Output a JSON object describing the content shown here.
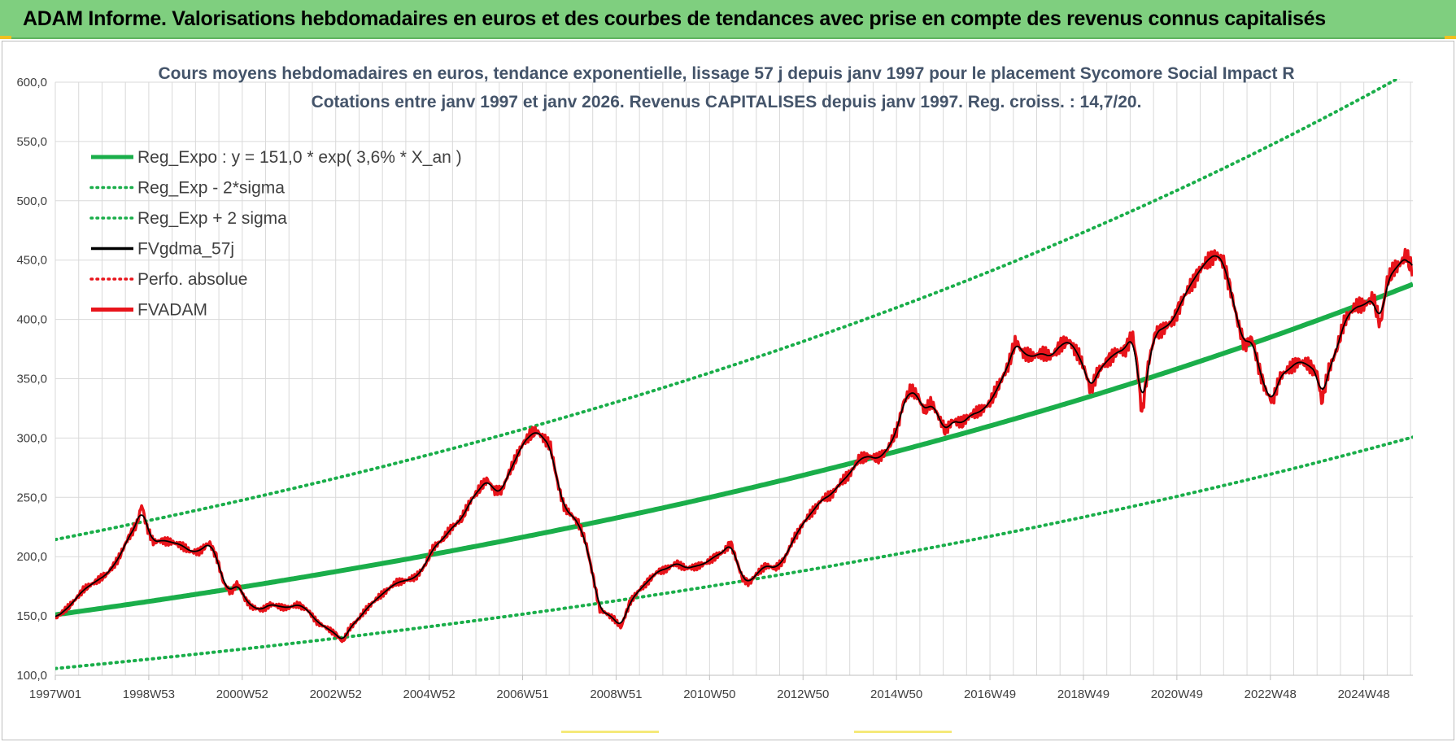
{
  "banner": {
    "title": "ADAM Informe. Valorisations hebdomadaires en euros et des courbes de tendances avec prise en compte des revenus connus capitalisés"
  },
  "colors": {
    "banner_bg": "#7fcf7f",
    "regression": "#1aae4a",
    "sigma_bands": "#1aae4a",
    "gdma": "#000000",
    "fvadam": "#e8141b",
    "perfo": "#e8141b",
    "grid": "#d9d9d9",
    "title_text": "#44546a"
  },
  "chart_data": {
    "type": "line",
    "title_line1": "Cours moyens hebdomadaires en euros, tendance exponentielle, lissage 57 j depuis janv 1997 pour le placement Sycomore Social Impact R",
    "title_line2": "Cotations entre janv 1997 et janv 2026. Revenus CAPITALISES depuis janv 1997. Reg. croiss. : 14,7/20.",
    "x_range_years": [
      1997.0,
      2026.05
    ],
    "ylim": [
      100,
      600
    ],
    "y_ticks": [
      100,
      150,
      200,
      250,
      300,
      350,
      400,
      450,
      500,
      550,
      600
    ],
    "y_tick_labels": [
      "100,0",
      "150,0",
      "200,0",
      "250,0",
      "300,0",
      "350,0",
      "400,0",
      "450,0",
      "500,0",
      "550,0",
      "600,0"
    ],
    "x_ticks": [
      {
        "label": "1997W01",
        "year": 1997.0
      },
      {
        "label": "1998W53",
        "year": 1999.0
      },
      {
        "label": "2000W52",
        "year": 2001.0
      },
      {
        "label": "2002W52",
        "year": 2003.0
      },
      {
        "label": "2004W52",
        "year": 2005.0
      },
      {
        "label": "2006W51",
        "year": 2007.0
      },
      {
        "label": "2008W51",
        "year": 2009.0
      },
      {
        "label": "2010W50",
        "year": 2011.0
      },
      {
        "label": "2012W50",
        "year": 2013.0
      },
      {
        "label": "2014W50",
        "year": 2015.0
      },
      {
        "label": "2016W49",
        "year": 2017.0
      },
      {
        "label": "2018W49",
        "year": 2019.0
      },
      {
        "label": "2020W49",
        "year": 2021.0
      },
      {
        "label": "2022W48",
        "year": 2023.0
      },
      {
        "label": "2024W48",
        "year": 2025.0
      }
    ],
    "regression": {
      "a": 151.0,
      "rate": 0.036,
      "start_year": 1997.0
    },
    "sigma_factor_low": 0.7,
    "sigma_factor_high": 1.42,
    "legend": [
      {
        "key": "reg",
        "label": "Reg_Expo : y = 151,0 * exp( 3,6% *  X_an )",
        "style": "solid-thick",
        "color": "#1aae4a"
      },
      {
        "key": "minus",
        "label": "Reg_Exp - 2*sigma",
        "style": "dotted",
        "color": "#1aae4a"
      },
      {
        "key": "plus",
        "label": "Reg_Exp + 2 sigma",
        "style": "dotted",
        "color": "#1aae4a"
      },
      {
        "key": "gdma",
        "label": "FVgdma_57j",
        "style": "solid",
        "color": "#000000"
      },
      {
        "key": "perfo",
        "label": "Perfo. absolue",
        "style": "dotted",
        "color": "#e8141b"
      },
      {
        "key": "fvadam",
        "label": "FVADAM",
        "style": "solid-thick",
        "color": "#e8141b"
      }
    ],
    "series": [
      {
        "name": "FVADAM",
        "points": [
          [
            1997.0,
            148
          ],
          [
            1997.3,
            158
          ],
          [
            1997.6,
            172
          ],
          [
            1997.9,
            180
          ],
          [
            1998.1,
            185
          ],
          [
            1998.35,
            198
          ],
          [
            1998.55,
            215
          ],
          [
            1998.75,
            228
          ],
          [
            1998.85,
            244
          ],
          [
            1998.95,
            226
          ],
          [
            1999.1,
            212
          ],
          [
            1999.3,
            214
          ],
          [
            1999.5,
            212
          ],
          [
            1999.7,
            210
          ],
          [
            1999.9,
            204
          ],
          [
            2000.1,
            205
          ],
          [
            2000.3,
            212
          ],
          [
            2000.45,
            200
          ],
          [
            2000.6,
            178
          ],
          [
            2000.75,
            170
          ],
          [
            2000.9,
            178
          ],
          [
            2001.05,
            165
          ],
          [
            2001.2,
            158
          ],
          [
            2001.4,
            155
          ],
          [
            2001.6,
            160
          ],
          [
            2001.8,
            158
          ],
          [
            2002.0,
            157
          ],
          [
            2002.2,
            160
          ],
          [
            2002.4,
            155
          ],
          [
            2002.6,
            145
          ],
          [
            2002.8,
            140
          ],
          [
            2003.0,
            135
          ],
          [
            2003.15,
            128
          ],
          [
            2003.3,
            140
          ],
          [
            2003.5,
            148
          ],
          [
            2003.7,
            158
          ],
          [
            2003.9,
            165
          ],
          [
            2004.1,
            172
          ],
          [
            2004.3,
            178
          ],
          [
            2004.5,
            180
          ],
          [
            2004.7,
            182
          ],
          [
            2004.9,
            192
          ],
          [
            2005.1,
            208
          ],
          [
            2005.3,
            215
          ],
          [
            2005.5,
            225
          ],
          [
            2005.7,
            232
          ],
          [
            2005.9,
            248
          ],
          [
            2006.1,
            258
          ],
          [
            2006.25,
            265
          ],
          [
            2006.4,
            255
          ],
          [
            2006.55,
            255
          ],
          [
            2006.7,
            270
          ],
          [
            2006.85,
            282
          ],
          [
            2007.0,
            295
          ],
          [
            2007.15,
            302
          ],
          [
            2007.3,
            306
          ],
          [
            2007.45,
            300
          ],
          [
            2007.6,
            292
          ],
          [
            2007.75,
            262
          ],
          [
            2007.9,
            240
          ],
          [
            2008.05,
            235
          ],
          [
            2008.2,
            228
          ],
          [
            2008.35,
            212
          ],
          [
            2008.5,
            185
          ],
          [
            2008.65,
            155
          ],
          [
            2008.8,
            152
          ],
          [
            2008.95,
            148
          ],
          [
            2009.1,
            140
          ],
          [
            2009.3,
            162
          ],
          [
            2009.5,
            172
          ],
          [
            2009.7,
            180
          ],
          [
            2009.9,
            188
          ],
          [
            2010.1,
            190
          ],
          [
            2010.3,
            195
          ],
          [
            2010.5,
            190
          ],
          [
            2010.7,
            192
          ],
          [
            2010.9,
            194
          ],
          [
            2011.1,
            200
          ],
          [
            2011.3,
            204
          ],
          [
            2011.45,
            212
          ],
          [
            2011.55,
            200
          ],
          [
            2011.7,
            182
          ],
          [
            2011.85,
            178
          ],
          [
            2012.0,
            185
          ],
          [
            2012.2,
            193
          ],
          [
            2012.4,
            190
          ],
          [
            2012.6,
            198
          ],
          [
            2012.8,
            215
          ],
          [
            2013.0,
            228
          ],
          [
            2013.2,
            238
          ],
          [
            2013.4,
            248
          ],
          [
            2013.6,
            252
          ],
          [
            2013.8,
            262
          ],
          [
            2014.0,
            270
          ],
          [
            2014.2,
            282
          ],
          [
            2014.4,
            285
          ],
          [
            2014.6,
            282
          ],
          [
            2014.8,
            290
          ],
          [
            2015.0,
            305
          ],
          [
            2015.15,
            330
          ],
          [
            2015.3,
            340
          ],
          [
            2015.45,
            336
          ],
          [
            2015.6,
            322
          ],
          [
            2015.75,
            330
          ],
          [
            2015.9,
            318
          ],
          [
            2016.05,
            305
          ],
          [
            2016.2,
            315
          ],
          [
            2016.4,
            312
          ],
          [
            2016.6,
            320
          ],
          [
            2016.8,
            322
          ],
          [
            2017.0,
            330
          ],
          [
            2017.2,
            345
          ],
          [
            2017.4,
            362
          ],
          [
            2017.55,
            382
          ],
          [
            2017.7,
            372
          ],
          [
            2017.9,
            368
          ],
          [
            2018.1,
            372
          ],
          [
            2018.3,
            368
          ],
          [
            2018.5,
            378
          ],
          [
            2018.7,
            382
          ],
          [
            2018.9,
            370
          ],
          [
            2019.05,
            355
          ],
          [
            2019.15,
            340
          ],
          [
            2019.3,
            355
          ],
          [
            2019.5,
            365
          ],
          [
            2019.7,
            372
          ],
          [
            2019.9,
            375
          ],
          [
            2020.05,
            388
          ],
          [
            2020.15,
            362
          ],
          [
            2020.25,
            320
          ],
          [
            2020.4,
            365
          ],
          [
            2020.55,
            390
          ],
          [
            2020.7,
            392
          ],
          [
            2020.9,
            398
          ],
          [
            2021.1,
            415
          ],
          [
            2021.3,
            430
          ],
          [
            2021.5,
            442
          ],
          [
            2021.7,
            452
          ],
          [
            2021.85,
            455
          ],
          [
            2022.0,
            448
          ],
          [
            2022.15,
            425
          ],
          [
            2022.3,
            398
          ],
          [
            2022.45,
            378
          ],
          [
            2022.6,
            385
          ],
          [
            2022.75,
            360
          ],
          [
            2022.9,
            340
          ],
          [
            2023.05,
            330
          ],
          [
            2023.2,
            352
          ],
          [
            2023.4,
            358
          ],
          [
            2023.6,
            365
          ],
          [
            2023.8,
            362
          ],
          [
            2024.0,
            355
          ],
          [
            2024.1,
            330
          ],
          [
            2024.25,
            358
          ],
          [
            2024.4,
            372
          ],
          [
            2024.6,
            400
          ],
          [
            2024.8,
            410
          ],
          [
            2025.0,
            412
          ],
          [
            2025.2,
            418
          ],
          [
            2025.35,
            395
          ],
          [
            2025.5,
            432
          ],
          [
            2025.65,
            442
          ],
          [
            2025.8,
            448
          ],
          [
            2025.9,
            454
          ],
          [
            2026.05,
            440
          ]
        ]
      }
    ]
  }
}
